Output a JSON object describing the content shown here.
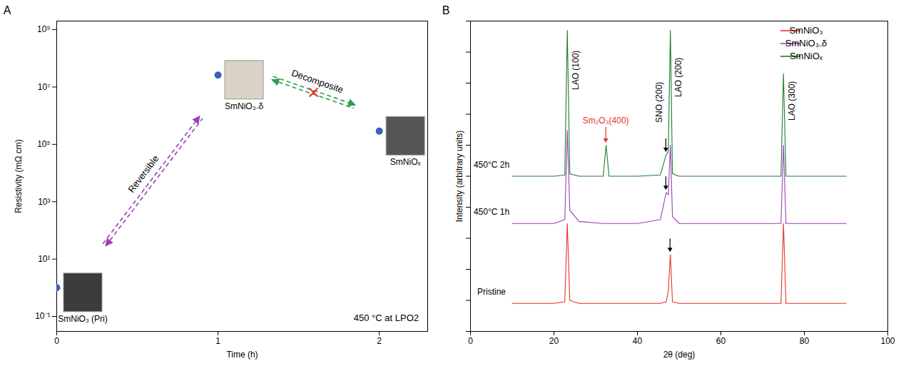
{
  "chart_data": [
    {
      "type": "scatter",
      "panel_label": "A",
      "x_label": "Time (h)",
      "y_label": "Resistivity (mΩ cm)",
      "annotation": "450 °C at LPO2",
      "log": "y",
      "x": [
        0,
        1,
        2
      ],
      "series": [
        {
          "color": "#3b5fbf",
          "marker": "circle",
          "values": [
            1,
            26000000,
            290000
          ],
          "point_labels": [
            "SmNiO₃ (Pri)",
            "SmNiO₃₋δ",
            "SmNiOₓ"
          ]
        }
      ],
      "xlim": [
        0,
        2.3
      ],
      "xticks": [
        0,
        1,
        2
      ],
      "ylim": [
        0.03,
        2000000000
      ],
      "yticks": [
        {
          "value": 0.1,
          "label": "10⁻¹"
        },
        {
          "value": 10,
          "label": "10¹"
        },
        {
          "value": 1000,
          "label": "10³"
        },
        {
          "value": 100000,
          "label": "10⁵"
        },
        {
          "value": 10000000,
          "label": "10⁷"
        },
        {
          "value": 1000000000,
          "label": "10⁹"
        }
      ],
      "transitions": [
        {
          "from": 0,
          "to": 1,
          "label": "Reversible",
          "color": "#9b3fb4",
          "line_style": "dashed"
        },
        {
          "from": 1,
          "to": 2,
          "label": "Decomposite",
          "color": "#2e9b4f",
          "line_style": "dashed",
          "marker": "x"
        }
      ]
    },
    {
      "type": "line",
      "panel_label": "B",
      "x_label": "2θ (deg)",
      "y_label": "Intensity (arbitrary units)",
      "log": "y",
      "tick_labels": "x",
      "legend": "top-right",
      "x": [
        10,
        20,
        22.6,
        23.2,
        23.8,
        26,
        31.8,
        32.5,
        33.2,
        40,
        45.5,
        46.9,
        47.4,
        47.9,
        48.4,
        50,
        74.4,
        75,
        75.6,
        90
      ],
      "series": [
        {
          "name": "SmNiO₃",
          "color": "#e8312a",
          "curve_label": "Pristine",
          "values": [
            8,
            8,
            9,
            3000,
            10,
            8,
            8,
            8,
            8,
            8,
            8,
            9,
            20,
            300,
            9,
            8,
            8,
            3000,
            8,
            8
          ]
        },
        {
          "name": "SmNiO₃₋δ",
          "color": "#9b3fb4",
          "curve_label": "450°C 1h",
          "values": [
            3000,
            3000,
            4000,
            3000000,
            8000,
            3500,
            3000,
            3000,
            3000,
            3000,
            4000,
            30000,
            25000,
            1000000,
            5000,
            3000,
            3000,
            1000000,
            3000,
            3000
          ]
        },
        {
          "name": "SmNiOₓ",
          "color": "#1e7b34",
          "curve_label": "450°C 2h",
          "values": [
            100000,
            100000,
            110000,
            5000000000,
            120000,
            100000,
            100000,
            1000000,
            100000,
            100000,
            110000,
            500000,
            600000,
            5000000000,
            120000,
            100000,
            100000,
            200000000,
            100000,
            100000
          ]
        }
      ],
      "xlim": [
        0,
        100
      ],
      "xticks": [
        0,
        20,
        40,
        60,
        80,
        100
      ],
      "ylim": [
        1,
        10000000000
      ],
      "yticks": [
        1,
        10,
        100,
        1000,
        10000,
        100000,
        1000000,
        10000000,
        100000000,
        1000000000,
        10000000000
      ],
      "peak_labels": [
        {
          "text": "LAO (100)",
          "x": 23.2
        },
        {
          "text": "Sm₂O₃(400)",
          "x": 32.5,
          "color": "#e8312a"
        },
        {
          "text": "SNO (200)",
          "x": 46.9
        },
        {
          "text": "LAO (200)",
          "x": 47.9
        },
        {
          "text": "LAO (300)",
          "x": 75
        }
      ],
      "peak_markers": [
        {
          "series": "SmNiO₃",
          "x": 47.9
        },
        {
          "series": "SmNiO₃₋δ",
          "x": 46.9
        },
        {
          "series": "SmNiOₓ",
          "x": 46.9
        }
      ]
    }
  ]
}
